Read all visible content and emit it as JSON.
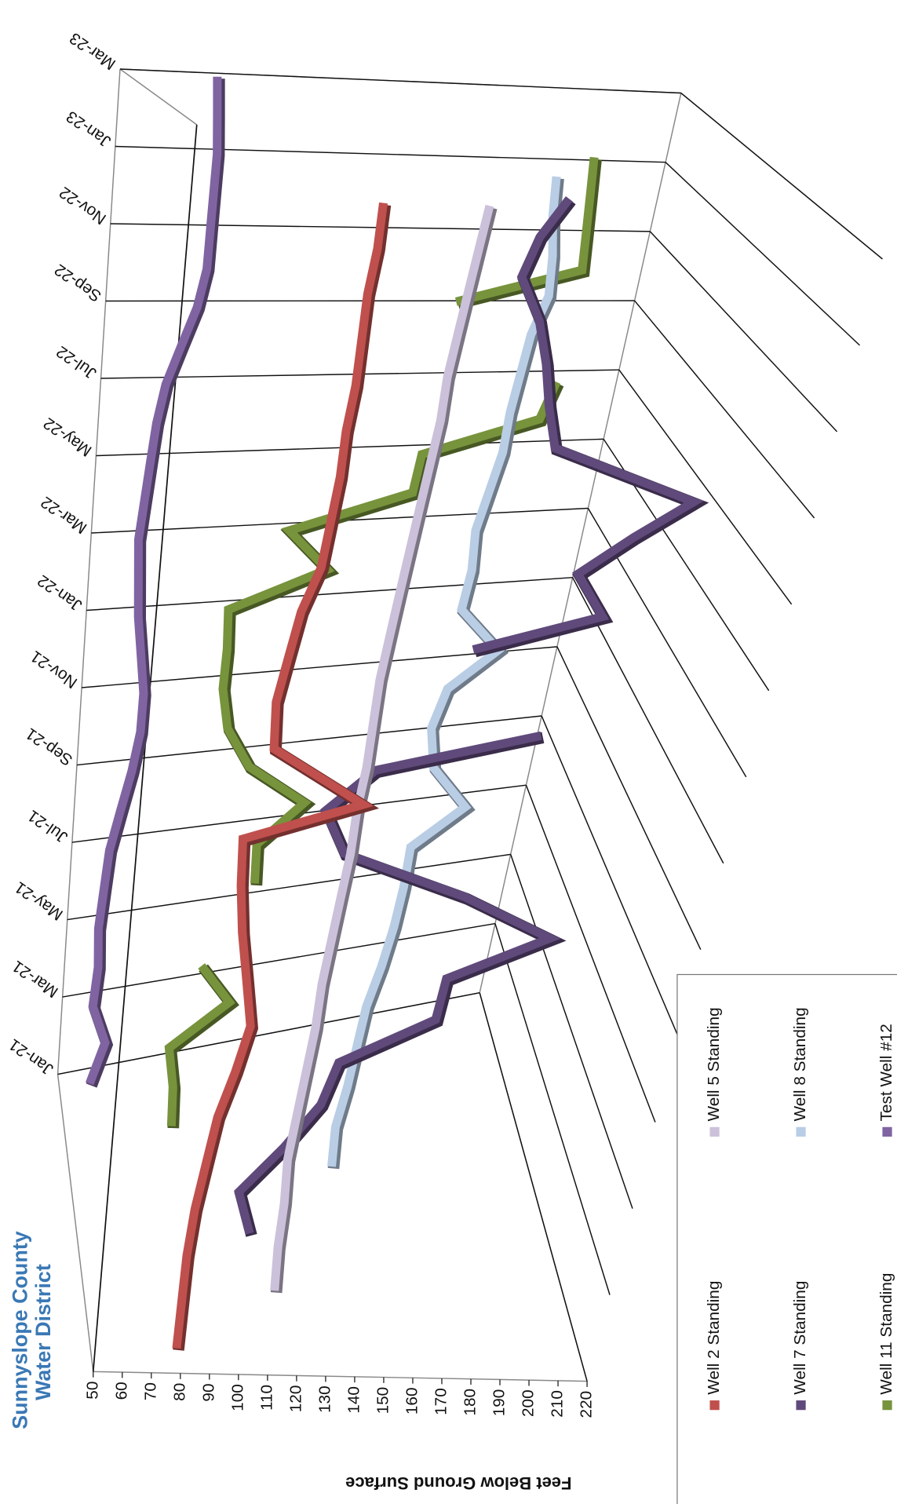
{
  "chart_data": {
    "type": "line",
    "logo": [
      "Sunnyslope County",
      "Water District"
    ],
    "y_label": "Feet Below Ground Surface",
    "categories": [
      "Jan-21",
      null,
      "Mar-21",
      null,
      "May-21",
      null,
      "Jul-21",
      null,
      "Sep-21",
      null,
      "Nov-21",
      null,
      "Jan-22",
      null,
      "Mar-22",
      null,
      "May-22",
      null,
      "Jul-22",
      null,
      "Sep-22",
      null,
      "Nov-22",
      null,
      "Jan-23",
      null,
      "Mar-23"
    ],
    "ylim": [
      50,
      220
    ],
    "yticks": [
      50,
      60,
      70,
      80,
      90,
      100,
      110,
      120,
      130,
      140,
      150,
      160,
      170,
      180,
      190,
      200,
      210,
      220
    ],
    "series": [
      {
        "name": "Well 2 Standing",
        "color": "#c0504d",
        "values": [
          80,
          80,
          80,
          81,
          83,
          85,
          89,
          92,
          89,
          86,
          84,
          83,
          117,
          89,
          88,
          90,
          92,
          96,
          97,
          98,
          98,
          99,
          99,
          99,
          100,
          100,
          null
        ]
      },
      {
        "name": "Well 5 Standing",
        "color": "#ccc1da",
        "values": [
          118,
          117,
          117,
          116,
          117,
          118,
          119,
          119,
          120,
          121,
          122,
          122,
          123,
          123,
          123,
          124,
          125,
          126,
          127,
          128,
          129,
          129,
          130,
          131,
          132,
          133,
          null
        ]
      },
      {
        "name": "Well 7 Standing",
        "color": "#604a7b",
        "values": [
          113,
          107,
          121,
          132,
          136,
          167,
          168,
          200,
          169,
          127,
          119,
          133,
          183,
          null,
          157,
          194,
          184,
          198,
          213,
          170,
          166,
          163,
          159,
          152,
          155,
          161,
          null
        ]
      },
      {
        "name": "Well 8 Standing",
        "color": "#b9cde5",
        "values": [
          148,
          147,
          149,
          150,
          151,
          154,
          156,
          157,
          157,
          173,
          160,
          157,
          160,
          174,
          160,
          161,
          160,
          162,
          164,
          164,
          165,
          166,
          169,
          168,
          166,
          165,
          null
        ]
      },
      {
        "name": "Well 11 Standing",
        "color": "#77933c",
        "values": [
          91,
          90,
          87,
          108,
          96,
          null,
          112,
          111,
          126,
          105,
          96,
          93,
          93,
          92,
          123,
          109,
          147,
          148,
          183,
          186,
          null,
          151,
          187,
          186,
          185,
          184,
          null
        ]
      },
      {
        "name": "Test Well #12",
        "color": "#8064a2",
        "values": [
          62,
          67,
          61,
          62,
          61,
          62,
          63,
          66,
          69,
          71,
          71,
          69,
          67,
          66,
          65,
          66,
          67,
          68,
          70,
          74,
          78,
          80,
          80,
          80,
          80,
          79,
          78
        ]
      }
    ]
  }
}
